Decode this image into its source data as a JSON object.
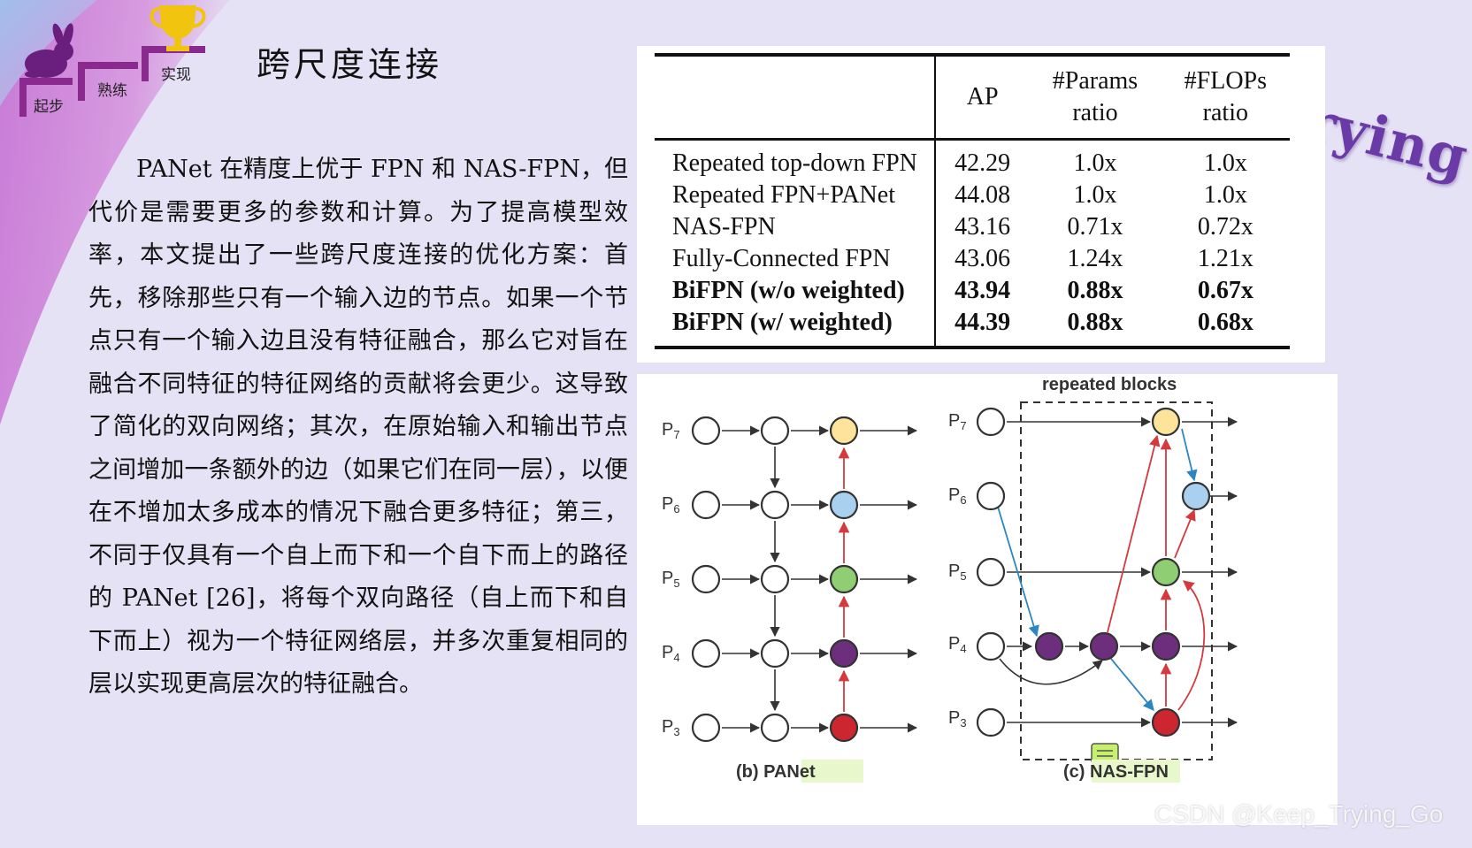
{
  "slide": {
    "title": "跨尺度连接",
    "logo_steps": [
      "起步",
      "熟练",
      "实现"
    ],
    "watermark_logo": "Keep Trying Go",
    "csdn_watermark": "CSDN @Keep_Trying_Go"
  },
  "body_text": "PANet 在精度上优于 FPN 和 NAS-FPN，但代价是需要更多的参数和计算。为了提高模型效率，本文提出了一些跨尺度连接的优化方案：首先，移除那些只有一个输入边的节点。如果一个节点只有一个输入边且没有特征融合，那么它对旨在融合不同特征的特征网络的贡献将会更少。这导致了简化的双向网络；其次，在原始输入和输出节点之间增加一条额外的边（如果它们在同一层），以便在不增加太多成本的情况下融合更多特征；第三，不同于仅具有一个自上而下和一个自下而上的路径的 PANet [26]，将每个双向路径（自上而下和自下而上）视为一个特征网络层，并多次重复相同的层以实现更高层次的特征融合。",
  "table": {
    "headers": {
      "ap": "AP",
      "params_1": "#Params",
      "params_2": "ratio",
      "flops_1": "#FLOPs",
      "flops_2": "ratio"
    },
    "rows": [
      {
        "name": "Repeated top-down FPN",
        "ap": "42.29",
        "params": "1.0x",
        "flops": "1.0x"
      },
      {
        "name": "Repeated FPN+PANet",
        "ap": "44.08",
        "params": "1.0x",
        "flops": "1.0x"
      },
      {
        "name": "NAS-FPN",
        "ap": "43.16",
        "params": "0.71x",
        "flops": "0.72x"
      },
      {
        "name": "Fully-Connected FPN",
        "ap": "43.06",
        "params": "1.24x",
        "flops": "1.21x"
      },
      {
        "name": "BiFPN (w/o weighted)",
        "ap": "43.94",
        "params": "0.88x",
        "flops": "0.67x"
      },
      {
        "name": "BiFPN (w/ weighted)",
        "ap": "44.39",
        "params": "0.88x",
        "flops": "0.68x"
      }
    ]
  },
  "figure": {
    "levels": [
      "P",
      "P",
      "P",
      "P",
      "P"
    ],
    "level_subs": [
      "7",
      "6",
      "5",
      "4",
      "3"
    ],
    "panet_caption_prefix": "(b) ",
    "panet_caption": "PANet",
    "nasfpn_caption_prefix": "(c) ",
    "nasfpn_caption": "NAS-FPN",
    "repeated_blocks_label": "repeated blocks",
    "colors": {
      "p7": "#fde49a",
      "p6": "#a9d0ef",
      "p5": "#8fce72",
      "p4": "#6e2e7e",
      "p3": "#cc2730",
      "red_edge": "#d4393e",
      "blue_edge": "#2b86c2",
      "caption_hl": "#e8f7cc"
    }
  }
}
